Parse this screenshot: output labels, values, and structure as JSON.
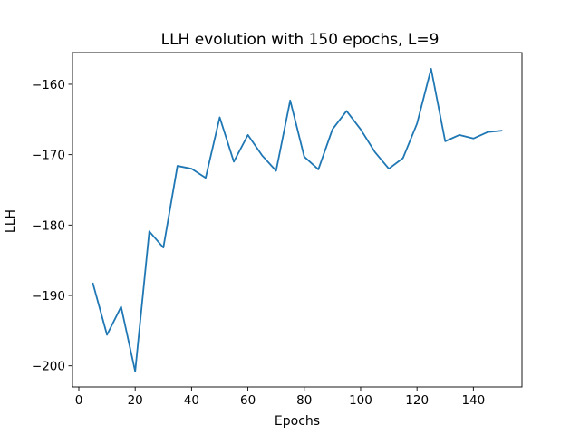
{
  "chart_data": {
    "type": "line",
    "title": "LLH evolution with 150 epochs, L=9",
    "xlabel": "Epochs",
    "ylabel": "LLH",
    "xlim": [
      -2.25,
      157.25
    ],
    "ylim": [
      -203.0,
      -155.5
    ],
    "xticks": [
      0,
      20,
      40,
      60,
      80,
      100,
      120,
      140
    ],
    "yticks": [
      -200,
      -190,
      -180,
      -170,
      -160
    ],
    "grid": false,
    "line_color": "#1f77b4",
    "series": [
      {
        "x": [
          5,
          10,
          15,
          20,
          25,
          30,
          35,
          40,
          45,
          50,
          55,
          60,
          65,
          70,
          75,
          80,
          85,
          90,
          95,
          100,
          105,
          110,
          115,
          120,
          125,
          130,
          135,
          140,
          145,
          150
        ],
        "values": [
          -188.3,
          -195.6,
          -191.6,
          -200.8,
          -180.9,
          -183.2,
          -171.6,
          -172.0,
          -173.3,
          -164.7,
          -171.0,
          -167.2,
          -170.1,
          -172.3,
          -162.3,
          -170.3,
          -172.1,
          -166.4,
          -163.8,
          -166.4,
          -169.6,
          -172.0,
          -170.5,
          -165.6,
          -157.8,
          -168.1,
          -167.2,
          -167.7,
          -166.8,
          -166.6
        ]
      }
    ]
  }
}
